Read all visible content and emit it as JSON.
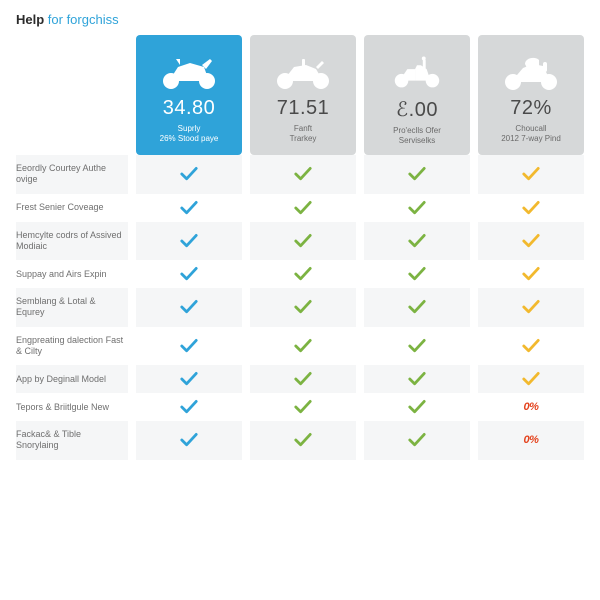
{
  "title": {
    "bold": "Help",
    "light": " for forgchiss",
    "bold_color": "#2b2b2b",
    "light_color": "#2fa3d9"
  },
  "colors": {
    "featured_bg": "#2fa3d9",
    "plain_bg": "#d6d8d9",
    "stripe": "#f5f6f7",
    "check_blue": "#2fa3d9",
    "check_green": "#7cb342",
    "check_yellow": "#f2b92e",
    "badge_red": "#e4441f",
    "icon_white": "#ffffff",
    "text_dark": "#4a4a4a",
    "text_muted": "#6a6a6a"
  },
  "columns": [
    {
      "id": "c1",
      "featured": true,
      "icon": "sportbike",
      "stat": "34.80",
      "sub": "Suprly\n26% Stood paye"
    },
    {
      "id": "c2",
      "featured": false,
      "icon": "standard",
      "stat": "71.51",
      "sub": "Fanft\nTrarkey"
    },
    {
      "id": "c3",
      "featured": false,
      "icon": "scooter",
      "stat": "ℰ.00",
      "sub": "Pro'eclls Ofer\nServiselks"
    },
    {
      "id": "c4",
      "featured": false,
      "icon": "touring",
      "stat": "72%",
      "sub": "Choucall\n2012 7-way Pind"
    }
  ],
  "rows": [
    {
      "label": "Eeordly Courtey Authe ovige",
      "cells": [
        "blue",
        "green",
        "green",
        "yellow"
      ]
    },
    {
      "label": "Frest Senier Coveage",
      "cells": [
        "blue",
        "green",
        "green",
        "yellow"
      ]
    },
    {
      "label": "Hemcylte codrs of Assived Modiaic",
      "cells": [
        "blue",
        "green",
        "green",
        "yellow"
      ]
    },
    {
      "label": "Suppay and Airs Expin",
      "cells": [
        "blue",
        "green",
        "green",
        "yellow"
      ]
    },
    {
      "label": "Semblang & Lotal & Equrey",
      "cells": [
        "blue",
        "green",
        "green",
        "yellow"
      ]
    },
    {
      "label": "Engpreating dalection Fast & Cilty",
      "cells": [
        "blue",
        "green",
        "green",
        "yellow"
      ]
    },
    {
      "label": "App by Deginall Model",
      "cells": [
        "blue",
        "green",
        "green",
        "yellow"
      ]
    },
    {
      "label": "Tepors & Briitlgule New",
      "cells": [
        "blue",
        "green",
        "green",
        "badge"
      ]
    },
    {
      "label": "Fackac& & Tible Snorylaing",
      "cells": [
        "blue",
        "green",
        "green",
        "badge"
      ]
    }
  ],
  "badge_text": "0%"
}
